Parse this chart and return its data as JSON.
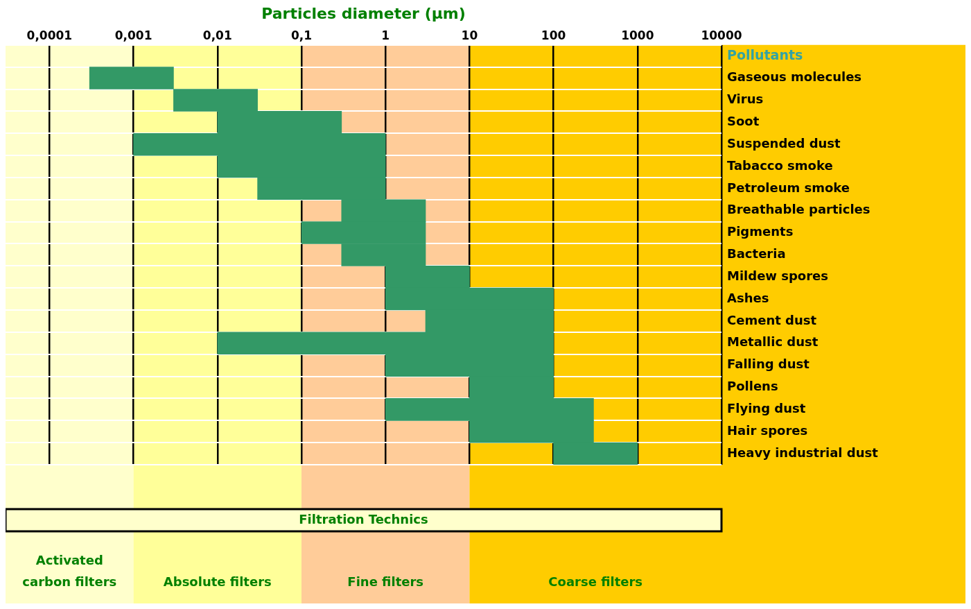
{
  "chart_data": {
    "type": "bar",
    "orientation": "horizontal",
    "xlabel": "Particles diameter (µm)",
    "ylabel": "Pollutants",
    "categories": [
      null,
      "Gaseous molecules",
      "Virus",
      "Soot",
      "Suspended dust",
      "Tabacco smoke",
      "Petroleum smoke",
      "Breathable particles",
      "Pigments",
      "Bacteria",
      "Mildew spores",
      "Ashes",
      "Cement dust",
      "Metallic dust",
      "Falling dust",
      "Pollens",
      "Flying dust",
      "Hair spores",
      "Heavy industrial dust"
    ],
    "base": [
      null,
      0.0003,
      0.003,
      0.01,
      0.001,
      0.01,
      0.03,
      0.3,
      0.1,
      0.3,
      1,
      1,
      3,
      0.01,
      1,
      10,
      1,
      10,
      100
    ],
    "values": [
      null,
      0.0027,
      0.027,
      0.29,
      0.999,
      0.99,
      0.97,
      2.7,
      2.9,
      2.7,
      9,
      99,
      97,
      99.99,
      99,
      90,
      299,
      290,
      900
    ],
    "color": "#339966",
    "log": "x",
    "xlim": [
      3e-05,
      10000
    ],
    "xticks": [
      {
        "value": 0.0001,
        "label": "0,0001"
      },
      {
        "value": 0.001,
        "label": "0,001"
      },
      {
        "value": 0.01,
        "label": "0,01"
      },
      {
        "value": 0.1,
        "label": "0,1"
      },
      1,
      10,
      100,
      1000,
      10000
    ],
    "grid": true,
    "bands": [
      {
        "axis": "x",
        "from": 3e-05,
        "to": 0.001,
        "label": "Activated carbon filters",
        "color": "#ffffcc"
      },
      {
        "axis": "x",
        "from": 0.001,
        "to": 0.1,
        "label": "Absolute filters",
        "color": "#ffff99"
      },
      {
        "axis": "x",
        "from": 0.1,
        "to": 10,
        "label": "Fine filters",
        "color": "#ffcc99"
      },
      {
        "axis": "x",
        "from": 10,
        "to": 10000,
        "label": "Coarse filters",
        "color": "#ffcc00"
      }
    ],
    "annotations": [
      "Filtration Technics"
    ]
  }
}
